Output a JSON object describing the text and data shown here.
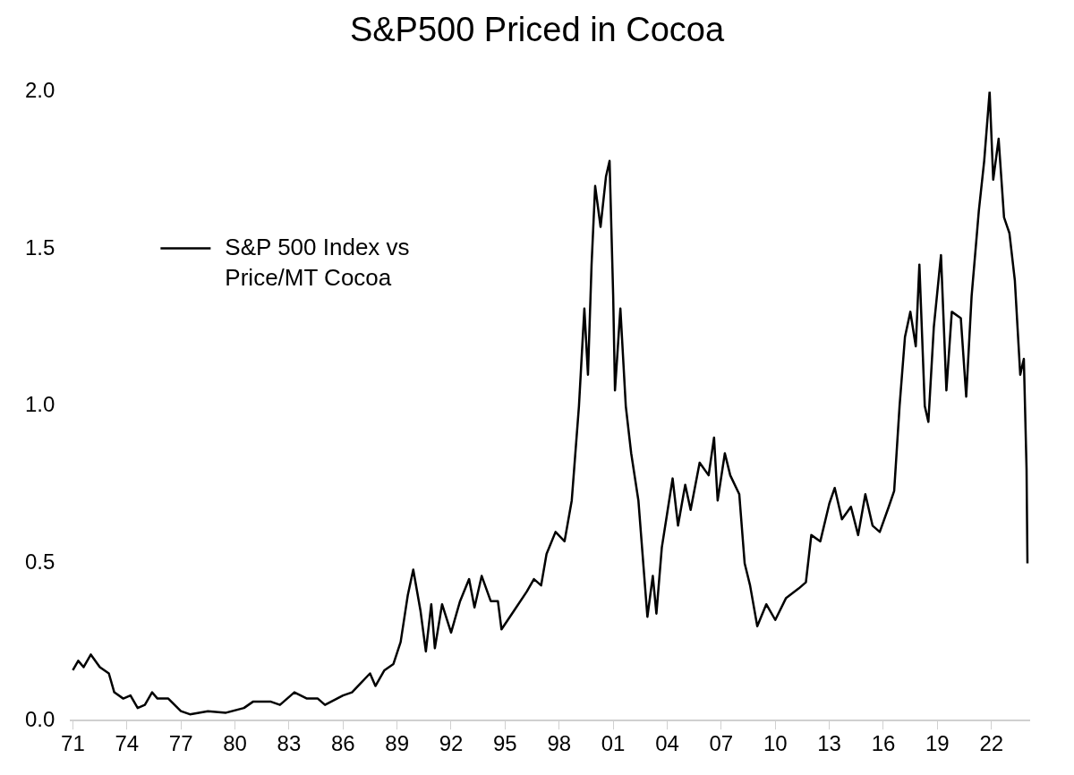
{
  "chart_data": {
    "type": "line",
    "title": "S&P500 Priced in Cocoa",
    "legend": "top left",
    "grid": false,
    "marker": "none",
    "line_style": "solid",
    "xlim": [
      1970.9,
      2024.1
    ],
    "xticks": [
      {
        "value": 1971,
        "label": "71"
      },
      {
        "value": 1974,
        "label": "74"
      },
      {
        "value": 1977,
        "label": "77"
      },
      {
        "value": 1980,
        "label": "80"
      },
      {
        "value": 1983,
        "label": "83"
      },
      {
        "value": 1986,
        "label": "86"
      },
      {
        "value": 1989,
        "label": "89"
      },
      {
        "value": 1992,
        "label": "92"
      },
      {
        "value": 1995,
        "label": "95"
      },
      {
        "value": 1998,
        "label": "98"
      },
      {
        "value": 2001,
        "label": "01"
      },
      {
        "value": 2004,
        "label": "04"
      },
      {
        "value": 2007,
        "label": "07"
      },
      {
        "value": 2010,
        "label": "10"
      },
      {
        "value": 2013,
        "label": "13"
      },
      {
        "value": 2016,
        "label": "16"
      },
      {
        "value": 2019,
        "label": "19"
      },
      {
        "value": 2022,
        "label": "22"
      }
    ],
    "ylim": [
      0,
      2
    ],
    "yticks": [
      {
        "value": 0,
        "label": "0.0"
      },
      {
        "value": 0.5,
        "label": "0.5"
      },
      {
        "value": 1,
        "label": "1.0"
      },
      {
        "value": 1.5,
        "label": "1.5"
      },
      {
        "value": 2,
        "label": "2.0"
      }
    ],
    "series": [
      {
        "name": "S&P 500 Index vs Price/MT Cocoa",
        "color": "#000000",
        "x": [
          1971.0,
          1971.3,
          1971.6,
          1972.0,
          1972.5,
          1973.0,
          1973.3,
          1973.8,
          1974.2,
          1974.6,
          1975.0,
          1975.4,
          1975.7,
          1976.3,
          1977.0,
          1977.5,
          1978.5,
          1979.5,
          1980.5,
          1981.0,
          1982.0,
          1982.5,
          1983.3,
          1984.0,
          1984.6,
          1985.0,
          1986.0,
          1986.5,
          1987.5,
          1987.8,
          1988.3,
          1988.8,
          1989.2,
          1989.6,
          1989.9,
          1990.3,
          1990.6,
          1990.9,
          1991.1,
          1991.5,
          1992.0,
          1992.5,
          1993.0,
          1993.3,
          1993.7,
          1994.2,
          1994.6,
          1994.8,
          1995.5,
          1996.2,
          1996.6,
          1997.0,
          1997.3,
          1997.8,
          1998.3,
          1998.7,
          1999.1,
          1999.4,
          1999.6,
          1999.8,
          2000.0,
          2000.3,
          2000.6,
          2000.8,
          2001.0,
          2001.1,
          2001.4,
          2001.7,
          2002.0,
          2002.4,
          2002.9,
          2003.2,
          2003.4,
          2003.7,
          2004.0,
          2004.3,
          2004.6,
          2005.0,
          2005.3,
          2005.8,
          2006.3,
          2006.6,
          2006.8,
          2007.2,
          2007.5,
          2008.0,
          2008.3,
          2008.6,
          2009.0,
          2009.5,
          2010.0,
          2010.6,
          2011.3,
          2011.7,
          2012.0,
          2012.5,
          2013.0,
          2013.3,
          2013.7,
          2014.2,
          2014.6,
          2015.0,
          2015.4,
          2015.8,
          2016.3,
          2016.6,
          2016.9,
          2017.2,
          2017.5,
          2017.8,
          2018.0,
          2018.3,
          2018.5,
          2018.8,
          2019.2,
          2019.5,
          2019.8,
          2020.3,
          2020.6,
          2020.9,
          2021.3,
          2021.6,
          2021.9,
          2022.1,
          2022.4,
          2022.7,
          2023.0,
          2023.3,
          2023.6,
          2023.8,
          2023.95,
          2024.0
        ],
        "values": [
          0.16,
          0.19,
          0.17,
          0.21,
          0.17,
          0.15,
          0.09,
          0.07,
          0.08,
          0.04,
          0.05,
          0.09,
          0.07,
          0.07,
          0.03,
          0.02,
          0.03,
          0.025,
          0.04,
          0.06,
          0.06,
          0.05,
          0.09,
          0.07,
          0.07,
          0.05,
          0.08,
          0.09,
          0.15,
          0.11,
          0.16,
          0.18,
          0.25,
          0.4,
          0.48,
          0.35,
          0.22,
          0.37,
          0.23,
          0.37,
          0.28,
          0.38,
          0.45,
          0.36,
          0.46,
          0.38,
          0.38,
          0.29,
          0.35,
          0.41,
          0.45,
          0.43,
          0.53,
          0.6,
          0.57,
          0.7,
          1.0,
          1.31,
          1.1,
          1.45,
          1.7,
          1.57,
          1.73,
          1.78,
          1.35,
          1.05,
          1.31,
          1.0,
          0.85,
          0.7,
          0.33,
          0.46,
          0.34,
          0.55,
          0.66,
          0.77,
          0.62,
          0.75,
          0.67,
          0.82,
          0.78,
          0.9,
          0.7,
          0.85,
          0.78,
          0.72,
          0.5,
          0.43,
          0.3,
          0.37,
          0.32,
          0.39,
          0.42,
          0.44,
          0.59,
          0.57,
          0.69,
          0.74,
          0.64,
          0.68,
          0.59,
          0.72,
          0.62,
          0.6,
          0.68,
          0.73,
          1.0,
          1.22,
          1.3,
          1.19,
          1.45,
          1.0,
          0.95,
          1.25,
          1.48,
          1.05,
          1.3,
          1.28,
          1.03,
          1.35,
          1.62,
          1.78,
          2.0,
          1.72,
          1.85,
          1.6,
          1.55,
          1.4,
          1.1,
          1.15,
          0.8,
          0.5
        ]
      }
    ]
  }
}
